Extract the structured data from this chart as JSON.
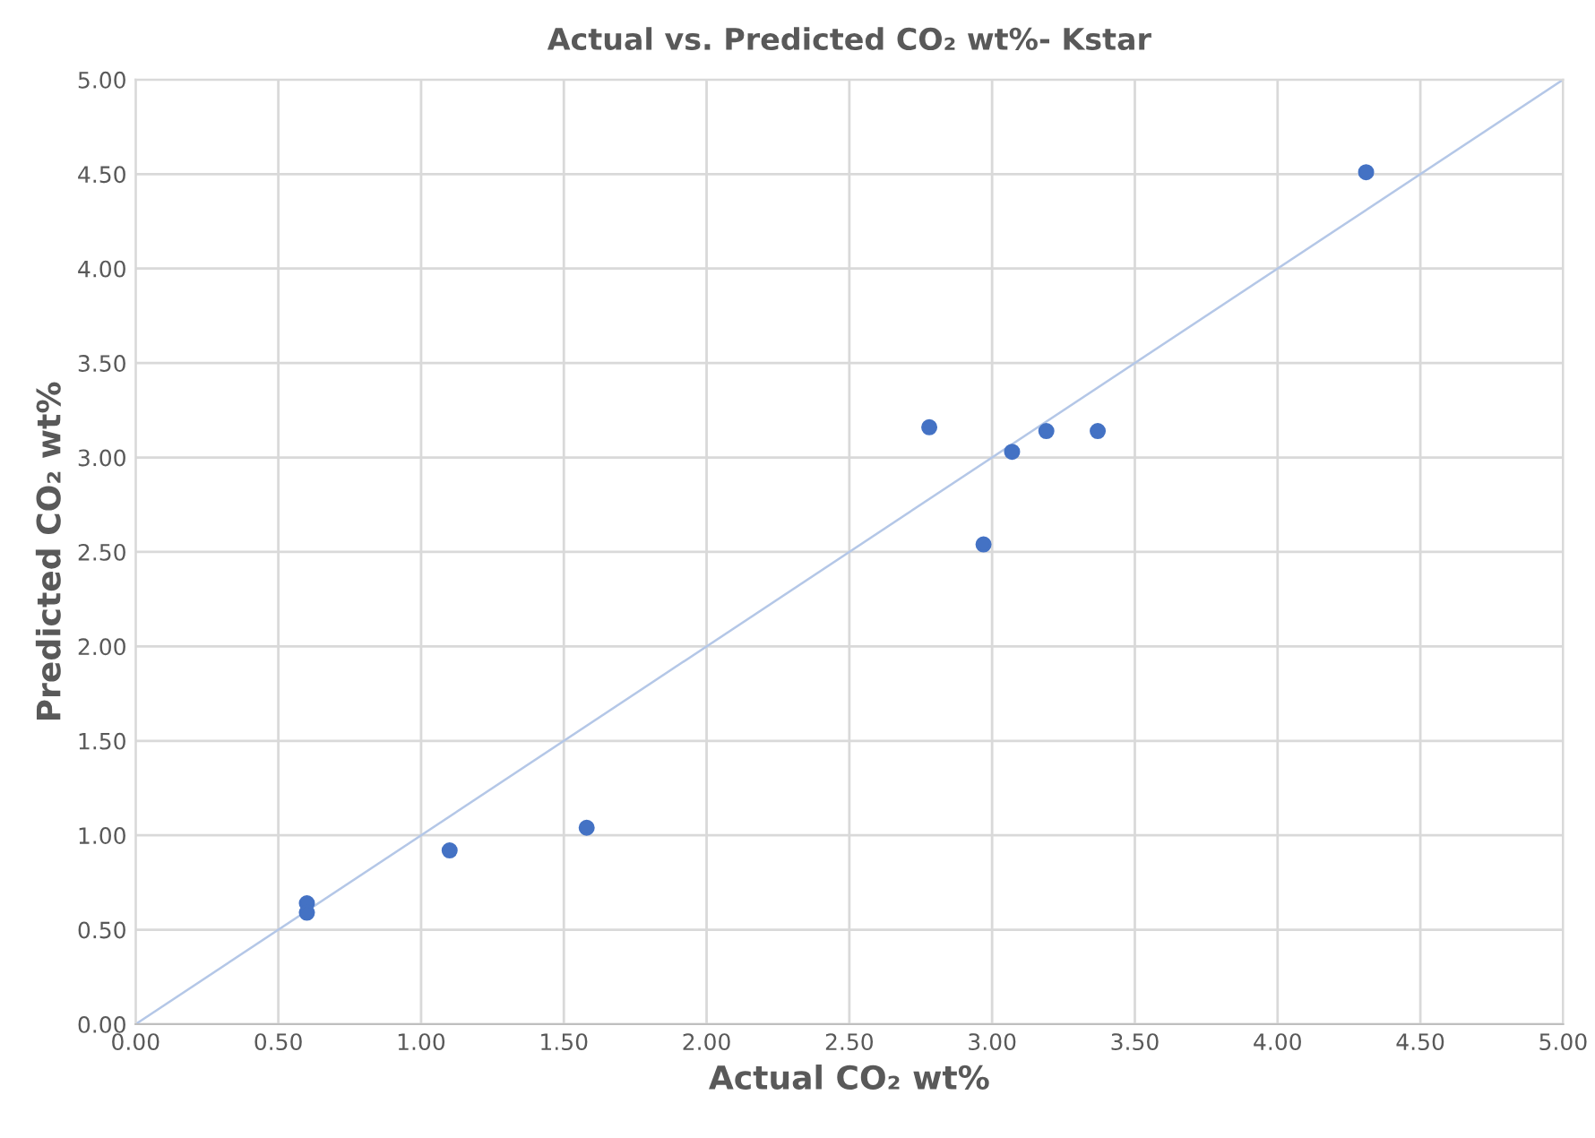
{
  "chart_data": {
    "type": "scatter",
    "title": "Actual vs. Predicted CO₂ wt%- Kstar",
    "xlabel": "Actual CO₂ wt%",
    "ylabel": "Predicted CO₂ wt%",
    "series": [
      {
        "color": "#4472c4",
        "x": [
          0.6,
          0.6,
          1.1,
          1.58,
          2.78,
          2.97,
          3.07,
          3.19,
          3.37,
          4.31
        ],
        "values": [
          0.64,
          0.59,
          0.92,
          1.04,
          3.16,
          2.54,
          3.03,
          3.14,
          3.14,
          4.51
        ],
        "marker": "circle"
      },
      {
        "type": "line",
        "color": "#b4c7e7",
        "x": [
          0,
          5
        ],
        "values": [
          0,
          5
        ],
        "marker": "none",
        "line_style": "solid"
      }
    ],
    "xlim": [
      0,
      5
    ],
    "ylim": [
      0,
      5
    ],
    "xticks": [
      {
        "value": 0,
        "label": "0.00"
      },
      {
        "value": 0.5,
        "label": "0.50"
      },
      {
        "value": 1,
        "label": "1.00"
      },
      {
        "value": 1.5,
        "label": "1.50"
      },
      {
        "value": 2,
        "label": "2.00"
      },
      {
        "value": 2.5,
        "label": "2.50"
      },
      {
        "value": 3,
        "label": "3.00"
      },
      {
        "value": 3.5,
        "label": "3.50"
      },
      {
        "value": 4,
        "label": "4.00"
      },
      {
        "value": 4.5,
        "label": "4.50"
      },
      {
        "value": 5,
        "label": "5.00"
      }
    ],
    "yticks": [
      {
        "value": 0,
        "label": "0.00"
      },
      {
        "value": 0.5,
        "label": "0.50"
      },
      {
        "value": 1,
        "label": "1.00"
      },
      {
        "value": 1.5,
        "label": "1.50"
      },
      {
        "value": 2,
        "label": "2.00"
      },
      {
        "value": 2.5,
        "label": "2.50"
      },
      {
        "value": 3,
        "label": "3.00"
      },
      {
        "value": 3.5,
        "label": "3.50"
      },
      {
        "value": 4,
        "label": "4.00"
      },
      {
        "value": 4.5,
        "label": "4.50"
      },
      {
        "value": 5,
        "label": "5.00"
      }
    ],
    "grid": true
  }
}
